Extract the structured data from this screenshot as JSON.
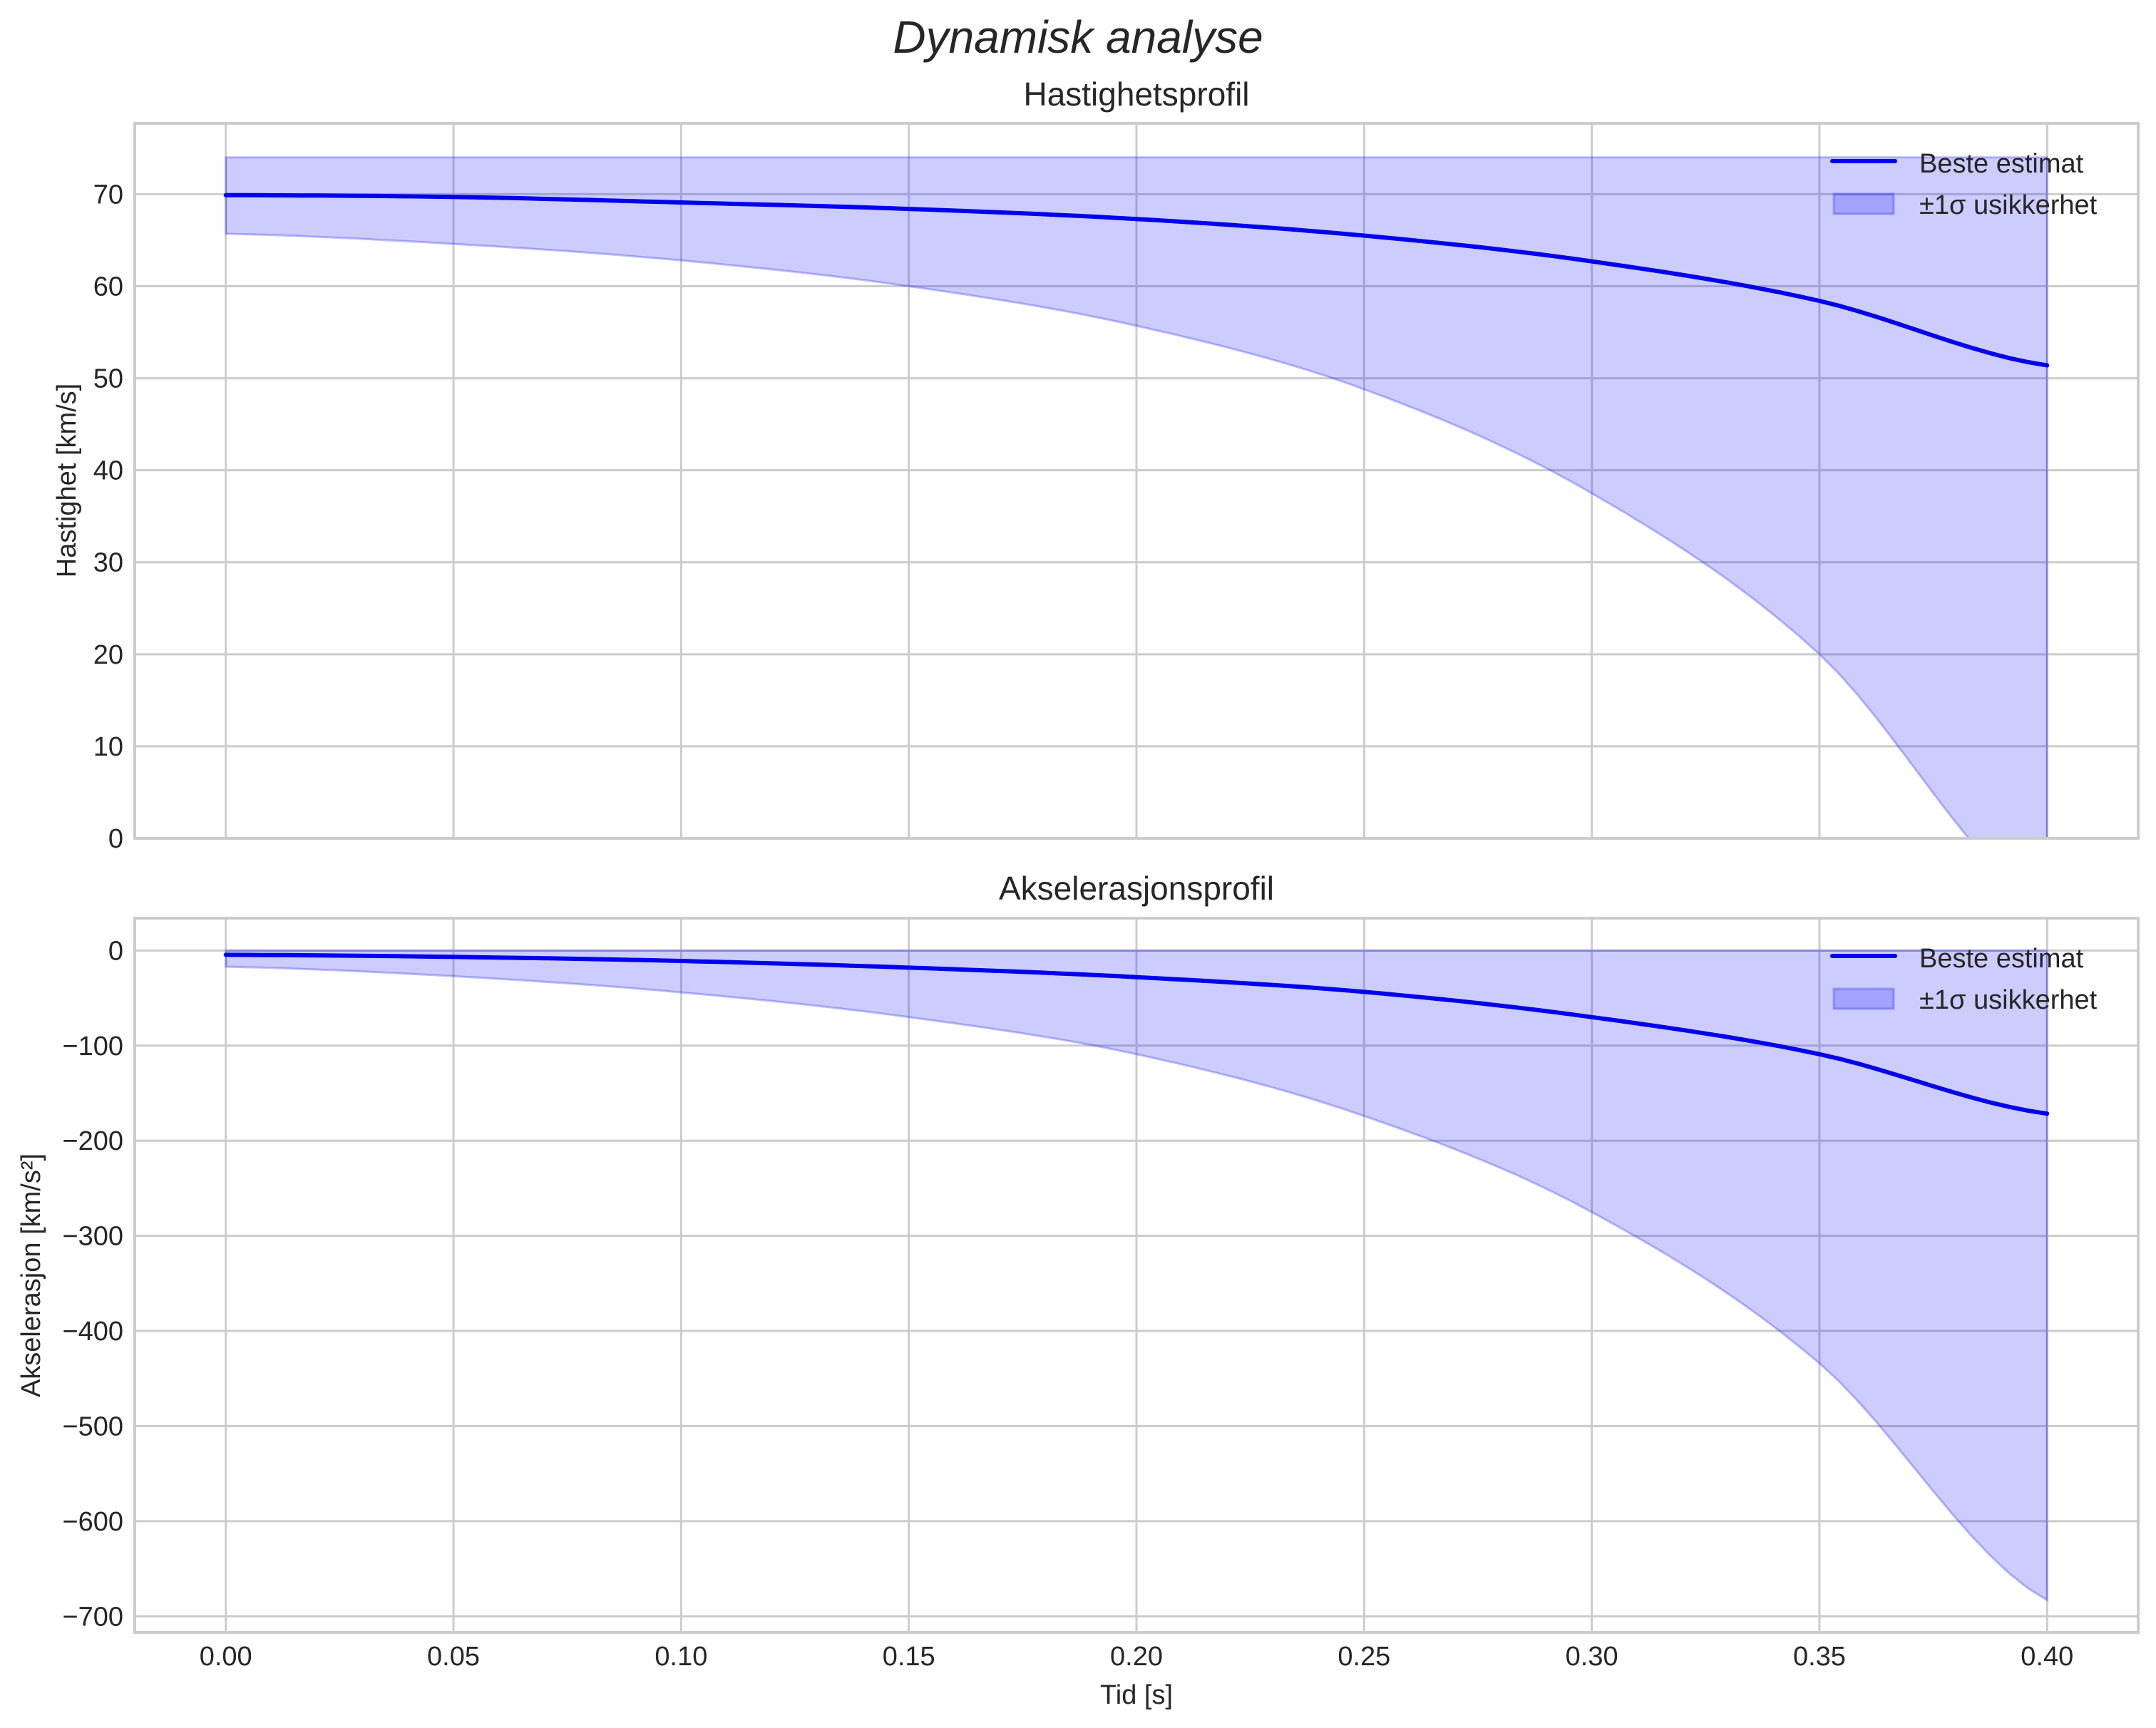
{
  "figure": {
    "suptitle": "Dynamisk analyse",
    "xlabel": "Tid [s]",
    "colors": {
      "line": "#0000ee",
      "band_fill": "#0000ff",
      "band_fill_opacity": 0.2,
      "grid": "#cccccc",
      "text": "#262626"
    },
    "legend": {
      "line_label": "Beste estimat",
      "band_label": "±1σ usikkerhet"
    }
  },
  "chart_data": [
    {
      "type": "line",
      "title": "Hastighetsprofil",
      "xlabel": "",
      "ylabel": "Hastighet [km/s]",
      "xlim": [
        -0.02,
        0.42
      ],
      "ylim": [
        0,
        77.7
      ],
      "xticks": [
        0.0,
        0.05,
        0.1,
        0.15,
        0.2,
        0.25,
        0.3,
        0.35,
        0.4
      ],
      "xtick_labels_visible": false,
      "yticks": [
        0,
        10,
        20,
        30,
        40,
        50,
        60,
        70
      ],
      "ytick_labels": [
        "0",
        "10",
        "20",
        "30",
        "40",
        "50",
        "60",
        "70"
      ],
      "grid": true,
      "legend_position": "upper right",
      "x": [
        0.0,
        0.05,
        0.1,
        0.15,
        0.2,
        0.25,
        0.3,
        0.35,
        0.4
      ],
      "series": [
        {
          "name": "Beste estimat",
          "kind": "line",
          "values": [
            69.9,
            69.7,
            69.1,
            68.4,
            67.3,
            65.5,
            62.7,
            58.4,
            51.4
          ]
        },
        {
          "name": "±1σ usikkerhet",
          "kind": "band",
          "upper": [
            74.0,
            74.0,
            74.0,
            74.0,
            74.0,
            74.0,
            74.0,
            74.0,
            74.0
          ],
          "lower": [
            65.7,
            64.6,
            62.8,
            60.0,
            55.7,
            48.8,
            37.5,
            20.0,
            -8.0
          ]
        }
      ]
    },
    {
      "type": "line",
      "title": "Akselerasjonsprofil",
      "xlabel": "Tid [s]",
      "ylabel": "Akselerasjon [km/s²]",
      "xlim": [
        -0.02,
        0.42
      ],
      "ylim": [
        -717,
        34
      ],
      "xticks": [
        0.0,
        0.05,
        0.1,
        0.15,
        0.2,
        0.25,
        0.3,
        0.35,
        0.4
      ],
      "xtick_labels": [
        "0.00",
        "0.05",
        "0.10",
        "0.15",
        "0.20",
        "0.25",
        "0.30",
        "0.35",
        "0.40"
      ],
      "yticks": [
        0,
        -100,
        -200,
        -300,
        -400,
        -500,
        -600,
        -700
      ],
      "ytick_labels": [
        "0",
        "−100",
        "−200",
        "−300",
        "−400",
        "−500",
        "−600",
        "−700"
      ],
      "grid": true,
      "legend_position": "upper right",
      "x": [
        0.0,
        0.05,
        0.1,
        0.15,
        0.2,
        0.25,
        0.3,
        0.35,
        0.4
      ],
      "series": [
        {
          "name": "Beste estimat",
          "kind": "line",
          "values": [
            -4.5,
            -6.7,
            -11,
            -18,
            -28,
            -43.5,
            -70,
            -109,
            -171.5
          ]
        },
        {
          "name": "±1σ usikkerhet",
          "kind": "band",
          "upper": [
            0,
            0,
            0,
            0,
            0,
            0,
            0,
            0,
            0
          ],
          "lower": [
            -17,
            -27,
            -44,
            -70,
            -109,
            -174,
            -275,
            -434,
            -683
          ]
        }
      ]
    }
  ]
}
